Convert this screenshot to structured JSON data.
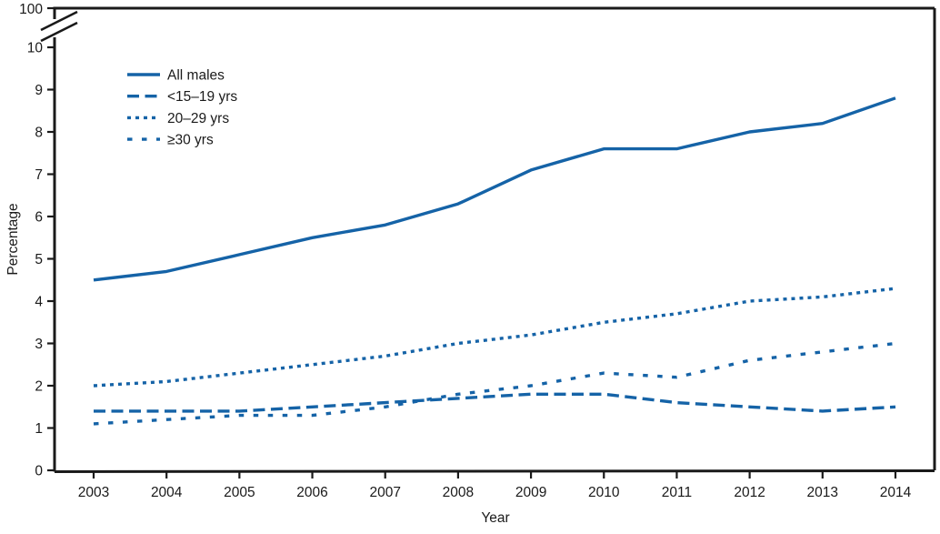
{
  "chart_data": {
    "type": "line",
    "title": "",
    "xlabel": "Year",
    "ylabel": "Percentage",
    "x_years": [
      2003,
      2004,
      2005,
      2006,
      2007,
      2008,
      2009,
      2010,
      2011,
      2012,
      2013,
      2014
    ],
    "y_ticks": [
      0,
      1,
      2,
      3,
      4,
      5,
      6,
      7,
      8,
      9,
      10
    ],
    "y_break_label": "100",
    "ylim": [
      0,
      10
    ],
    "axis_break": true,
    "grid": false,
    "legend_position": "top-left",
    "line_color": "#1563a7",
    "axis_color": "#1a1a1a",
    "series": [
      {
        "name": "All males",
        "style": "solid",
        "values": [
          4.5,
          4.7,
          5.1,
          5.5,
          5.8,
          6.3,
          7.1,
          7.6,
          7.6,
          8.0,
          8.2,
          8.8
        ]
      },
      {
        "name": "<15–19 yrs",
        "style": "long-dash",
        "values": [
          1.4,
          1.4,
          1.4,
          1.5,
          1.6,
          1.7,
          1.8,
          1.8,
          1.6,
          1.5,
          1.4,
          1.5
        ]
      },
      {
        "name": "20–29 yrs",
        "style": "dotted",
        "values": [
          2.0,
          2.1,
          2.3,
          2.5,
          2.7,
          3.0,
          3.2,
          3.5,
          3.7,
          4.0,
          4.1,
          4.3
        ]
      },
      {
        "name": "≥30 yrs",
        "style": "sparse-dash",
        "values": [
          1.1,
          1.2,
          1.3,
          1.3,
          1.5,
          1.8,
          2.0,
          2.3,
          2.2,
          2.6,
          2.8,
          3.0
        ]
      }
    ]
  }
}
